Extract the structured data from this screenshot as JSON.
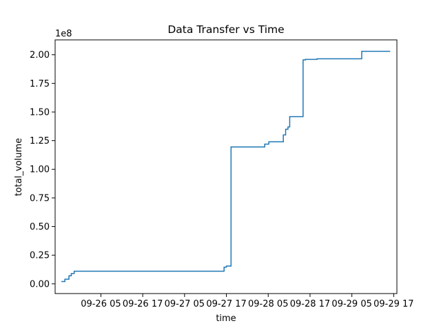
{
  "chart_data": {
    "type": "line",
    "title": "Data Transfer vs Time",
    "xlabel": "time",
    "ylabel": "total_volume",
    "y_offset_label": "1e8",
    "x_tick_labels": [
      "09-26 05",
      "09-26 17",
      "09-27 05",
      "09-27 17",
      "09-28 05",
      "09-28 17",
      "09-29 05",
      "09-29 17"
    ],
    "y_tick_labels": [
      "0.00",
      "0.25",
      "0.50",
      "0.75",
      "1.00",
      "1.25",
      "1.50",
      "1.75",
      "2.00"
    ],
    "x_ticks": [
      "2017-09-26 05:00",
      "2017-09-26 17:00",
      "2017-09-27 05:00",
      "2017-09-27 17:00",
      "2017-09-28 05:00",
      "2017-09-28 17:00",
      "2017-09-29 05:00",
      "2017-09-29 17:00"
    ],
    "y_ticks": [
      0,
      25000000,
      50000000,
      75000000,
      100000000,
      125000000,
      150000000,
      175000000,
      200000000
    ],
    "xlim": [
      "2017-09-25 15:52",
      "2017-09-29 17:55"
    ],
    "ylim": [
      -8500000,
      213000000
    ],
    "grid": false,
    "line_color": "#1f77b4",
    "series": [
      {
        "drawstyle": "steps-post",
        "x": [
          "2017-09-25 17:40",
          "2017-09-25 18:40",
          "2017-09-25 19:50",
          "2017-09-25 20:30",
          "2017-09-25 21:20",
          "2017-09-27 16:20",
          "2017-09-27 17:00",
          "2017-09-27 18:20",
          "2017-09-28 04:00",
          "2017-09-28 05:10",
          "2017-09-28 09:20",
          "2017-09-28 10:00",
          "2017-09-28 10:40",
          "2017-09-28 11:10",
          "2017-09-28 12:00",
          "2017-09-28 15:00",
          "2017-09-28 15:40",
          "2017-09-28 19:00",
          "2017-09-29 07:50",
          "2017-09-29 16:00"
        ],
        "y": [
          2000000,
          4000000,
          7000000,
          9000000,
          11000000,
          14500000,
          15500000,
          119500000,
          122000000,
          124000000,
          130000000,
          135000000,
          137000000,
          146000000,
          146000000,
          195500000,
          196000000,
          196500000,
          203000000,
          203000000
        ]
      }
    ]
  }
}
